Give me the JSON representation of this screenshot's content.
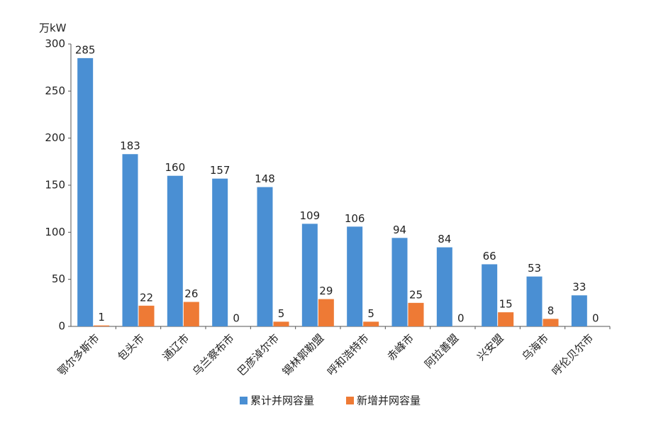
{
  "chart_data": {
    "type": "bar",
    "y_label": "万kW",
    "categories": [
      "鄂尔多斯市",
      "包头市",
      "通辽市",
      "乌兰察布市",
      "巴彦淖尔市",
      "锡林郭勒盟",
      "呼和浩特市",
      "赤峰市",
      "阿拉善盟",
      "兴安盟",
      "乌海市",
      "呼伦贝尔市"
    ],
    "series": [
      {
        "name": "累计并网容量",
        "color": "#4a8fd3",
        "values": [
          285,
          183,
          160,
          157,
          148,
          109,
          106,
          94,
          84,
          66,
          53,
          33
        ]
      },
      {
        "name": "新增并网容量",
        "color": "#ee7a35",
        "values": [
          1,
          22,
          26,
          0,
          5,
          29,
          5,
          25,
          0,
          15,
          8,
          0
        ]
      }
    ],
    "ylim": [
      0,
      300
    ],
    "yticks": [
      0,
      50,
      100,
      150,
      200,
      250,
      300
    ],
    "legend": "bottom"
  }
}
